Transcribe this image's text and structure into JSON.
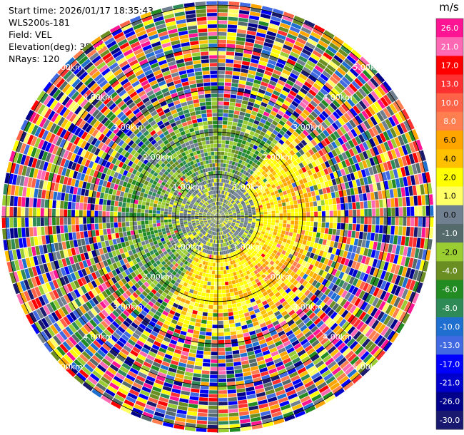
{
  "header": {
    "start_time": "Start time: 2026/01/17 18:35:43",
    "station": "WLS200s-181",
    "field": "Field: VEL",
    "elevation": "Elevation(deg): 35.00",
    "nrays": "NRays: 120"
  },
  "chart_data": {
    "type": "heatmap",
    "title": "",
    "xlabel": "",
    "ylabel": "",
    "projection": "polar (PPI)",
    "field": "VEL",
    "elevation_deg": 35.0,
    "n_rays": 120,
    "range_rings_km": [
      1,
      2,
      3,
      4,
      5
    ],
    "range_ring_labels": [
      "1.00km",
      "2.00km",
      "3.00km",
      "4.00km",
      "5.00km"
    ],
    "max_range_km": 5.0,
    "grid": true,
    "colorbar": {
      "unit": "m/s",
      "ticks": [
        "26.0",
        "21.0",
        "17.0",
        "13.0",
        "10.0",
        "8.0",
        "6.0",
        "4.0",
        "2.0",
        "1.0",
        "0.0",
        "-1.0",
        "-2.0",
        "-4.0",
        "-6.0",
        "-8.0",
        "-10.0",
        "-13.0",
        "-17.0",
        "-21.0",
        "-26.0",
        "-30.0"
      ],
      "colors": [
        "#ff1493",
        "#ff69b4",
        "#ff0000",
        "#ff3030",
        "#ff6347",
        "#ff7f50",
        "#ffa500",
        "#ffc000",
        "#ffff00",
        "#ffff66",
        "#708090",
        "#556b6b",
        "#9acd32",
        "#6b8e23",
        "#228b22",
        "#2e8b57",
        "#1e6fd0",
        "#4169e1",
        "#0000ff",
        "#0000cd",
        "#00008b",
        "#191970"
      ]
    }
  }
}
